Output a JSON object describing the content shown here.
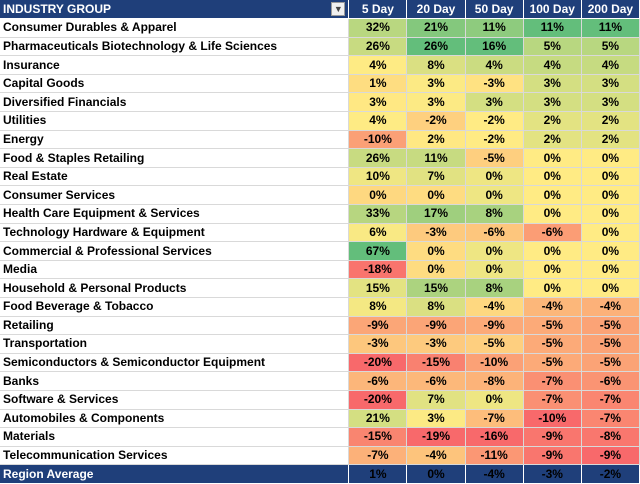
{
  "header": {
    "group_label": "INDUSTRY GROUP",
    "columns": [
      "5 Day",
      "20 Day",
      "50 Day",
      "100 Day",
      "200 Day"
    ]
  },
  "rows": [
    {
      "name": "Consumer Durables & Apparel",
      "values": [
        32,
        21,
        11,
        11,
        11
      ]
    },
    {
      "name": "Pharmaceuticals Biotechnology & Life Sciences",
      "values": [
        26,
        26,
        16,
        5,
        5
      ]
    },
    {
      "name": "Insurance",
      "values": [
        4,
        8,
        4,
        4,
        4
      ]
    },
    {
      "name": "Capital Goods",
      "values": [
        1,
        3,
        -3,
        3,
        3
      ]
    },
    {
      "name": "Diversified Financials",
      "values": [
        3,
        3,
        3,
        3,
        3
      ]
    },
    {
      "name": "Utilities",
      "values": [
        4,
        -2,
        -2,
        2,
        2
      ]
    },
    {
      "name": "Energy",
      "values": [
        -10,
        2,
        -2,
        2,
        2
      ]
    },
    {
      "name": "Food & Staples Retailing",
      "values": [
        26,
        11,
        -5,
        0,
        0
      ]
    },
    {
      "name": "Real Estate",
      "values": [
        10,
        7,
        0,
        0,
        0
      ]
    },
    {
      "name": "Consumer Services",
      "values": [
        0,
        0,
        0,
        0,
        0
      ]
    },
    {
      "name": "Health Care Equipment & Services",
      "values": [
        33,
        17,
        8,
        0,
        0
      ]
    },
    {
      "name": "Technology Hardware & Equipment",
      "values": [
        6,
        -3,
        -6,
        -6,
        0
      ]
    },
    {
      "name": "Commercial & Professional Services",
      "values": [
        67,
        0,
        0,
        0,
        0
      ]
    },
    {
      "name": "Media",
      "values": [
        -18,
        0,
        0,
        0,
        0
      ]
    },
    {
      "name": "Household & Personal Products",
      "values": [
        15,
        15,
        8,
        0,
        0
      ]
    },
    {
      "name": "Food Beverage & Tobacco",
      "values": [
        8,
        8,
        -4,
        -4,
        -4
      ]
    },
    {
      "name": "Retailing",
      "values": [
        -9,
        -9,
        -9,
        -5,
        -5
      ]
    },
    {
      "name": "Transportation",
      "values": [
        -3,
        -3,
        -5,
        -5,
        -5
      ]
    },
    {
      "name": "Semiconductors & Semiconductor Equipment",
      "values": [
        -20,
        -15,
        -10,
        -5,
        -5
      ]
    },
    {
      "name": "Banks",
      "values": [
        -6,
        -6,
        -8,
        -7,
        -6
      ]
    },
    {
      "name": "Software & Services",
      "values": [
        -20,
        7,
        0,
        -7,
        -7
      ]
    },
    {
      "name": "Automobiles & Components",
      "values": [
        21,
        3,
        -7,
        -10,
        -7
      ]
    },
    {
      "name": "Materials",
      "values": [
        -15,
        -19,
        -16,
        -9,
        -8
      ]
    },
    {
      "name": "Telecommunication Services",
      "values": [
        -7,
        -4,
        -11,
        -9,
        -9
      ]
    }
  ],
  "footer": {
    "label": "Region Average",
    "values": [
      1,
      0,
      -4,
      -3,
      -2
    ]
  },
  "units": {
    "suffix": "%"
  },
  "colors": {
    "header_bg": "#1f3f7a",
    "max_green": "#63be7b",
    "mid_yellow": "#ffeb84",
    "min_red": "#f8696b"
  }
}
